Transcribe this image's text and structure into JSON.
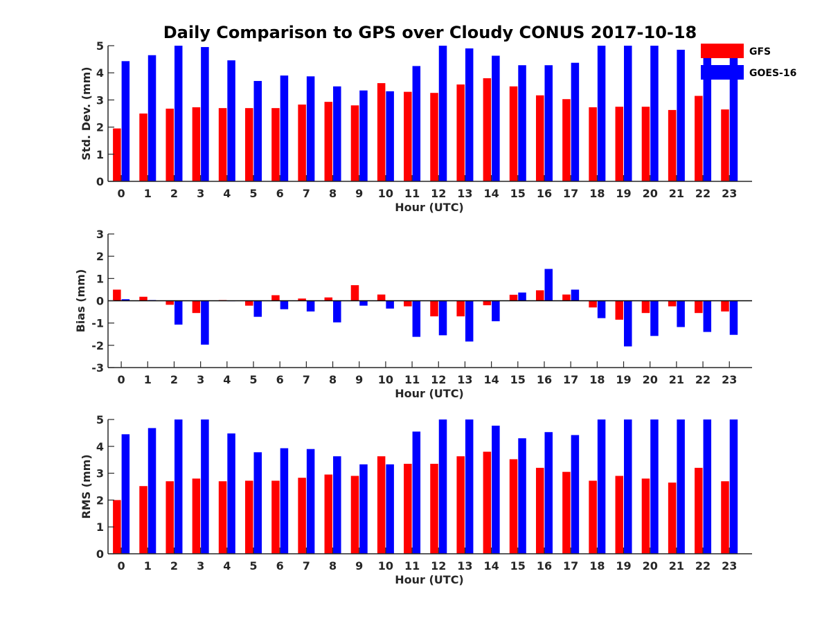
{
  "figure_title": "Daily Comparison to GPS over Cloudy CONUS 2017-10-18",
  "legend": [
    {
      "label": "GFS",
      "color": "#ff0000"
    },
    {
      "label": "GOES-16",
      "color": "#0000ff"
    }
  ],
  "chart_data": [
    {
      "type": "bar",
      "xlabel": "Hour (UTC)",
      "ylabel": "Std. Dev. (mm)",
      "ylim": [
        0,
        5
      ],
      "yticks": [
        0,
        1,
        2,
        3,
        4,
        5
      ],
      "categories": [
        "0",
        "1",
        "2",
        "3",
        "4",
        "5",
        "6",
        "7",
        "8",
        "9",
        "10",
        "11",
        "12",
        "13",
        "14",
        "15",
        "16",
        "17",
        "18",
        "19",
        "20",
        "21",
        "22",
        "23"
      ],
      "series": [
        {
          "name": "GFS",
          "color": "#ff0000",
          "values": [
            1.95,
            2.5,
            2.68,
            2.73,
            2.7,
            2.7,
            2.7,
            2.83,
            2.93,
            2.8,
            3.62,
            3.3,
            3.26,
            3.57,
            3.8,
            3.5,
            3.17,
            3.03,
            2.73,
            2.75,
            2.75,
            2.63,
            3.15,
            2.65
          ]
        },
        {
          "name": "GOES-16",
          "color": "#0000ff",
          "values": [
            4.43,
            4.65,
            5.0,
            4.95,
            4.46,
            3.7,
            3.9,
            3.87,
            3.5,
            3.35,
            3.32,
            4.25,
            5.0,
            4.9,
            4.63,
            4.28,
            4.28,
            4.37,
            5.0,
            5.0,
            5.0,
            4.85,
            5.0,
            5.0
          ]
        }
      ]
    },
    {
      "type": "bar",
      "xlabel": "Hour (UTC)",
      "ylabel": "Bias (mm)",
      "ylim": [
        -3,
        3
      ],
      "yticks": [
        -3,
        -2,
        -1,
        0,
        1,
        2,
        3
      ],
      "categories": [
        "0",
        "1",
        "2",
        "3",
        "4",
        "5",
        "6",
        "7",
        "8",
        "9",
        "10",
        "11",
        "12",
        "13",
        "14",
        "15",
        "16",
        "17",
        "18",
        "19",
        "20",
        "21",
        "22",
        "23"
      ],
      "series": [
        {
          "name": "GFS",
          "color": "#ff0000",
          "values": [
            0.5,
            0.18,
            -0.18,
            -0.55,
            0.03,
            -0.22,
            0.25,
            0.1,
            0.15,
            0.7,
            0.28,
            -0.25,
            -0.7,
            -0.7,
            -0.2,
            0.27,
            0.47,
            0.28,
            -0.3,
            -0.85,
            -0.55,
            -0.25,
            -0.55,
            -0.48
          ]
        },
        {
          "name": "GOES-16",
          "color": "#0000ff",
          "values": [
            0.07,
            0.03,
            -1.07,
            -1.97,
            0.0,
            -0.72,
            -0.38,
            -0.48,
            -0.97,
            -0.22,
            -0.35,
            -1.62,
            -1.55,
            -1.83,
            -0.92,
            0.37,
            1.43,
            0.5,
            -0.78,
            -2.05,
            -1.58,
            -1.18,
            -1.4,
            -1.53
          ]
        }
      ]
    },
    {
      "type": "bar",
      "xlabel": "Hour (UTC)",
      "ylabel": "RMS (mm)",
      "ylim": [
        0,
        5
      ],
      "yticks": [
        0,
        1,
        2,
        3,
        4,
        5
      ],
      "categories": [
        "0",
        "1",
        "2",
        "3",
        "4",
        "5",
        "6",
        "7",
        "8",
        "9",
        "10",
        "11",
        "12",
        "13",
        "14",
        "15",
        "16",
        "17",
        "18",
        "19",
        "20",
        "21",
        "22",
        "23"
      ],
      "series": [
        {
          "name": "GFS",
          "color": "#ff0000",
          "values": [
            2.0,
            2.52,
            2.7,
            2.8,
            2.7,
            2.72,
            2.72,
            2.83,
            2.95,
            2.9,
            3.63,
            3.35,
            3.35,
            3.63,
            3.8,
            3.52,
            3.2,
            3.05,
            2.72,
            2.9,
            2.8,
            2.65,
            3.2,
            2.7
          ]
        },
        {
          "name": "GOES-16",
          "color": "#0000ff",
          "values": [
            4.45,
            4.68,
            5.0,
            5.0,
            4.48,
            3.78,
            3.93,
            3.9,
            3.63,
            3.33,
            3.33,
            4.55,
            5.0,
            5.0,
            4.77,
            4.3,
            4.53,
            4.42,
            5.0,
            5.0,
            5.0,
            5.0,
            5.0,
            5.0
          ]
        }
      ]
    }
  ]
}
